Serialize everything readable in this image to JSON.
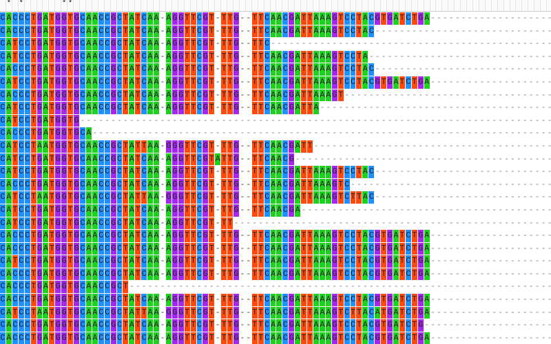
{
  "colors": {
    "A": "#1fd11f",
    "C": "#1e90ff",
    "G": "#a526ee",
    "T": "#ff4a0c"
  },
  "conservation": " * *      **",
  "sequences": [
    "CACCCTGATGGTGCAACCGCTATCAA-AGGTTCGT-TTG--TTCAACGATTAAAGTCCTACGTGATCTGA",
    "CACCCTGATGGTGCAACCGCTATCAA-AGGTTCGT-TTG--TTCAACGATTAAAGTCCTAC",
    "CATCCTGATGGTGCAACCGCTATCAA-AGGTTCGT-TTG--TTC",
    "CATCCTGATGGTGCAACCGCTATCAA-AGGTTCGT-TTG--TTCAACGATTAAAGTCCTA",
    "CACCCTGATGGTGCAACCGCTATCAA-AGGTTCGT-TTG--TTCAACGATTAAAGTCCTAC",
    "CATCCTGATGGTGCAACCGCTATCAA-AGGTTCGT-TTG--TTCAACGATTAAAGTCCTACGTGATCTGA",
    "CACCCTGATGGTGCAACCGCTATCAA-AGGTTCGT-TTG--TTCAACGATTAAAGT",
    "CATCCTGATGGTGCAACCGCTATCAA-AGGTTCGT-TTG--TTCAACGATTA",
    "CATCCTGATGGTG",
    "CACCCTGATGGTGCA",
    "CATCCTAATGGTGCAACCGCTATTAA-GGGTTCGT-TTG--TTCAACGATT",
    "CATCCTGATGGTGCAACCGCTATCAA-AGGTTCGTATTG--TTCAACG",
    "CATCCTGATGGTGCAACCGCTATCAA-AGGTTCGT-TTG--TTCAACGATTAAAGTCCTAC",
    "CACCCTGATGGTGCAACCGCTATCAA-AGGTTCGT-TTG--TTCAACGATTAAAGTC",
    "CATCCTAATGGTGCAACCGCTATTAA-GGGTTCGT-TTG--TTCAACGATTAAAGTCTTAC",
    "CATCCTGATGGTGCAACCGCTATCAA-AGGTTCGT-TTG--TTCAACGA",
    "CATCCTGATGGTGCAACCGCTATCAA-AGGTTCGT-TT",
    "CACCCTGATGGTGCAACCGCTATCAA-AGGTTCGT-TTG--TTCAACGATTAAAGTCCTACGTGATCTGA",
    "CACCCTGATGGTGCAACCGCTATCAA-AGGTTCGT-TTG--TTCAACGATTAAAGTCCTACGTGATCTGA",
    "CATCCTGATGGTGCAACCGCTATCAA-AGGTTCGT-TTG--TTCAACGATTAAAGTCCTACGTGATCTGA",
    "CACCCTGATGGTGCAACCGCTATCAA-AGGTTCGT-TTG--TTCAACGATTAAAGTCCTACGTGATCTGA",
    "CACCCTGATGGTGCAACCGCT",
    "CACCCTGATGGTGCAACCGCTATCAA-AGGTTCGT-TTG--TTCAACGATTAAAGTCCTACGTGATCTGA",
    "CATCCTAATGGTGCAACCGCTATTAA-GGGTTCGT-TTG--TTCAACGATTAAAGTCTTACATGATCTGA",
    "CACCCTGATGGTGCAACCGCTATCAA-AGGTTCGT-TTG--TTCAACGATTAAAGTCCTACGTGATCTG",
    "CACCCTGATGGTGCAACCGCTATCAA-AGGTTCGT-TTG--TTCAACGATTAAAGTCCTACGTGATCTGA"
  ]
}
